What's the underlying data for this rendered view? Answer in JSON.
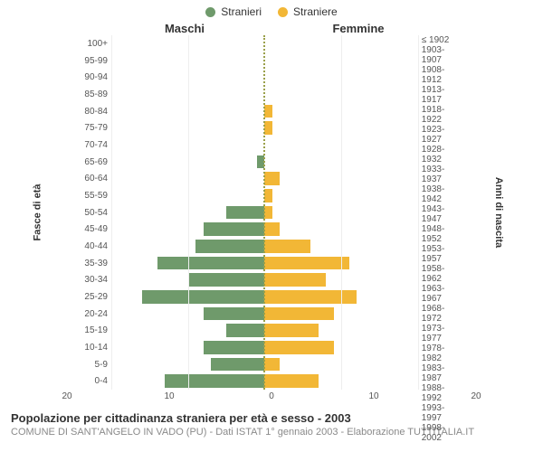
{
  "chart": {
    "type": "population-pyramid",
    "legend": [
      {
        "label": "Stranieri",
        "color": "#6f9a6b"
      },
      {
        "label": "Straniere",
        "color": "#f2b736"
      }
    ],
    "header_left": "Maschi",
    "header_right": "Femmine",
    "axis_left_label": "Fasce di età",
    "axis_right_label": "Anni di nascita",
    "x_domain_max": 20,
    "x_ticks": [
      20,
      10,
      0,
      10,
      20
    ],
    "male_color": "#6f9a6b",
    "female_color": "#f2b736",
    "background_color": "#ffffff",
    "rows": [
      {
        "age": "100+",
        "birth": "≤ 1902",
        "m": 0,
        "f": 0
      },
      {
        "age": "95-99",
        "birth": "1903-1907",
        "m": 0,
        "f": 0
      },
      {
        "age": "90-94",
        "birth": "1908-1912",
        "m": 0,
        "f": 0
      },
      {
        "age": "85-89",
        "birth": "1913-1917",
        "m": 0,
        "f": 0
      },
      {
        "age": "80-84",
        "birth": "1918-1922",
        "m": 0,
        "f": 1
      },
      {
        "age": "75-79",
        "birth": "1923-1927",
        "m": 0,
        "f": 1
      },
      {
        "age": "70-74",
        "birth": "1928-1932",
        "m": 0,
        "f": 0
      },
      {
        "age": "65-69",
        "birth": "1933-1937",
        "m": 1,
        "f": 0
      },
      {
        "age": "60-64",
        "birth": "1938-1942",
        "m": 0,
        "f": 2
      },
      {
        "age": "55-59",
        "birth": "1943-1947",
        "m": 0,
        "f": 1
      },
      {
        "age": "50-54",
        "birth": "1948-1952",
        "m": 5,
        "f": 1
      },
      {
        "age": "45-49",
        "birth": "1953-1957",
        "m": 8,
        "f": 2
      },
      {
        "age": "40-44",
        "birth": "1958-1962",
        "m": 9,
        "f": 6
      },
      {
        "age": "35-39",
        "birth": "1963-1967",
        "m": 14,
        "f": 11
      },
      {
        "age": "30-34",
        "birth": "1968-1972",
        "m": 10,
        "f": 8
      },
      {
        "age": "25-29",
        "birth": "1973-1977",
        "m": 16,
        "f": 12
      },
      {
        "age": "20-24",
        "birth": "1978-1982",
        "m": 8,
        "f": 9
      },
      {
        "age": "15-19",
        "birth": "1983-1987",
        "m": 5,
        "f": 7
      },
      {
        "age": "10-14",
        "birth": "1988-1992",
        "m": 8,
        "f": 9
      },
      {
        "age": "5-9",
        "birth": "1993-1997",
        "m": 7,
        "f": 2
      },
      {
        "age": "0-4",
        "birth": "1998-2002",
        "m": 13,
        "f": 7
      }
    ]
  },
  "footer": {
    "title": "Popolazione per cittadinanza straniera per età e sesso - 2003",
    "subtitle": "COMUNE DI SANT'ANGELO IN VADO (PU) - Dati ISTAT 1° gennaio 2003 - Elaborazione TUTTITALIA.IT"
  }
}
